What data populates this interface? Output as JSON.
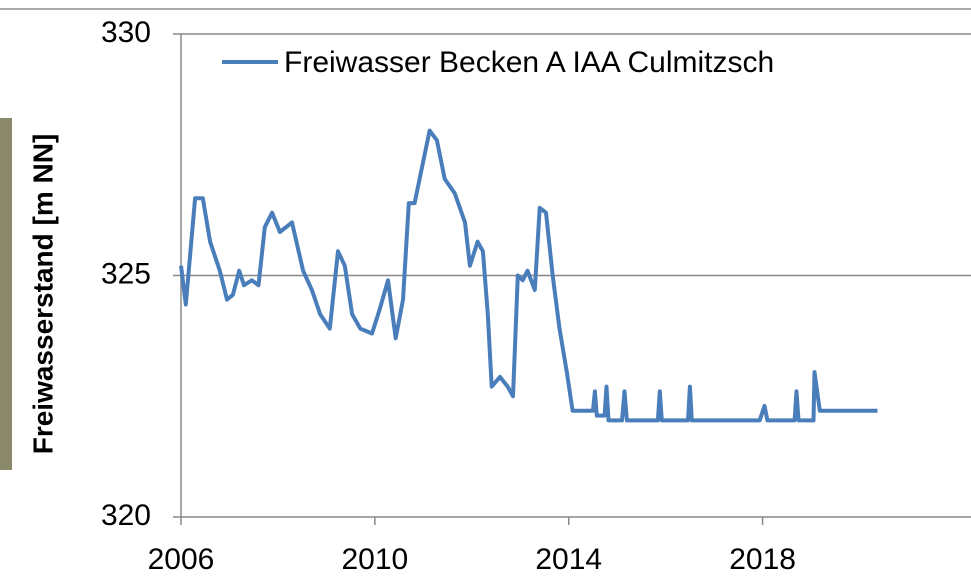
{
  "chart_data": {
    "type": "line",
    "ylabel": "Freiwasserstand [m NN]",
    "xlim": [
      2006,
      2022.3
    ],
    "xticks": [
      2006,
      2010,
      2014,
      2018
    ],
    "ylim": [
      320,
      330
    ],
    "yticks": [
      320,
      325,
      330
    ],
    "grid": true,
    "legend": "top",
    "series": [
      {
        "name": "Freiwasser Becken A IAA Culmitzsch",
        "color": "#4a7ebb",
        "x": [
          2006.0,
          2006.1,
          2006.29,
          2006.45,
          2006.6,
          2006.8,
          2006.95,
          2007.07,
          2007.2,
          2007.3,
          2007.46,
          2007.6,
          2007.73,
          2007.88,
          2008.04,
          2008.29,
          2008.52,
          2008.7,
          2008.87,
          2009.07,
          2009.24,
          2009.38,
          2009.53,
          2009.7,
          2009.94,
          2010.1,
          2010.27,
          2010.43,
          2010.58,
          2010.7,
          2010.82,
          2011.13,
          2011.28,
          2011.44,
          2011.65,
          2011.86,
          2011.96,
          2012.12,
          2012.23,
          2012.33,
          2012.41,
          2012.58,
          2012.74,
          2012.85,
          2012.95,
          2013.05,
          2013.15,
          2013.3,
          2013.4,
          2013.53,
          2013.67,
          2013.81,
          2013.96,
          2014.08,
          2014.5,
          2014.54,
          2014.58,
          2014.74,
          2014.78,
          2014.82,
          2015.1,
          2015.15,
          2015.2,
          2015.84,
          2015.88,
          2015.92,
          2016.46,
          2016.5,
          2016.54,
          2017.94,
          2018.04,
          2018.1,
          2018.66,
          2018.7,
          2018.74,
          2019.05,
          2019.07,
          2019.18,
          2020.37
        ],
        "values": [
          325.2,
          324.4,
          326.6,
          326.6,
          325.7,
          325.1,
          324.5,
          324.6,
          325.1,
          324.8,
          324.9,
          324.8,
          326.0,
          326.3,
          325.9,
          326.1,
          325.1,
          324.7,
          324.2,
          323.9,
          325.5,
          325.2,
          324.2,
          323.9,
          323.8,
          324.3,
          324.9,
          323.7,
          324.5,
          326.5,
          326.5,
          328.0,
          327.8,
          327.0,
          326.7,
          326.1,
          325.2,
          325.7,
          325.5,
          324.2,
          322.7,
          322.9,
          322.7,
          322.5,
          325.0,
          324.9,
          325.1,
          324.7,
          326.4,
          326.3,
          325.0,
          323.9,
          323.0,
          322.2,
          322.2,
          322.6,
          322.1,
          322.1,
          322.7,
          322.0,
          322.0,
          322.6,
          322.0,
          322.0,
          322.6,
          322.0,
          322.0,
          322.7,
          322.0,
          322.0,
          322.3,
          322.0,
          322.0,
          322.6,
          322.0,
          322.0,
          323.0,
          322.2,
          322.2
        ]
      }
    ]
  }
}
